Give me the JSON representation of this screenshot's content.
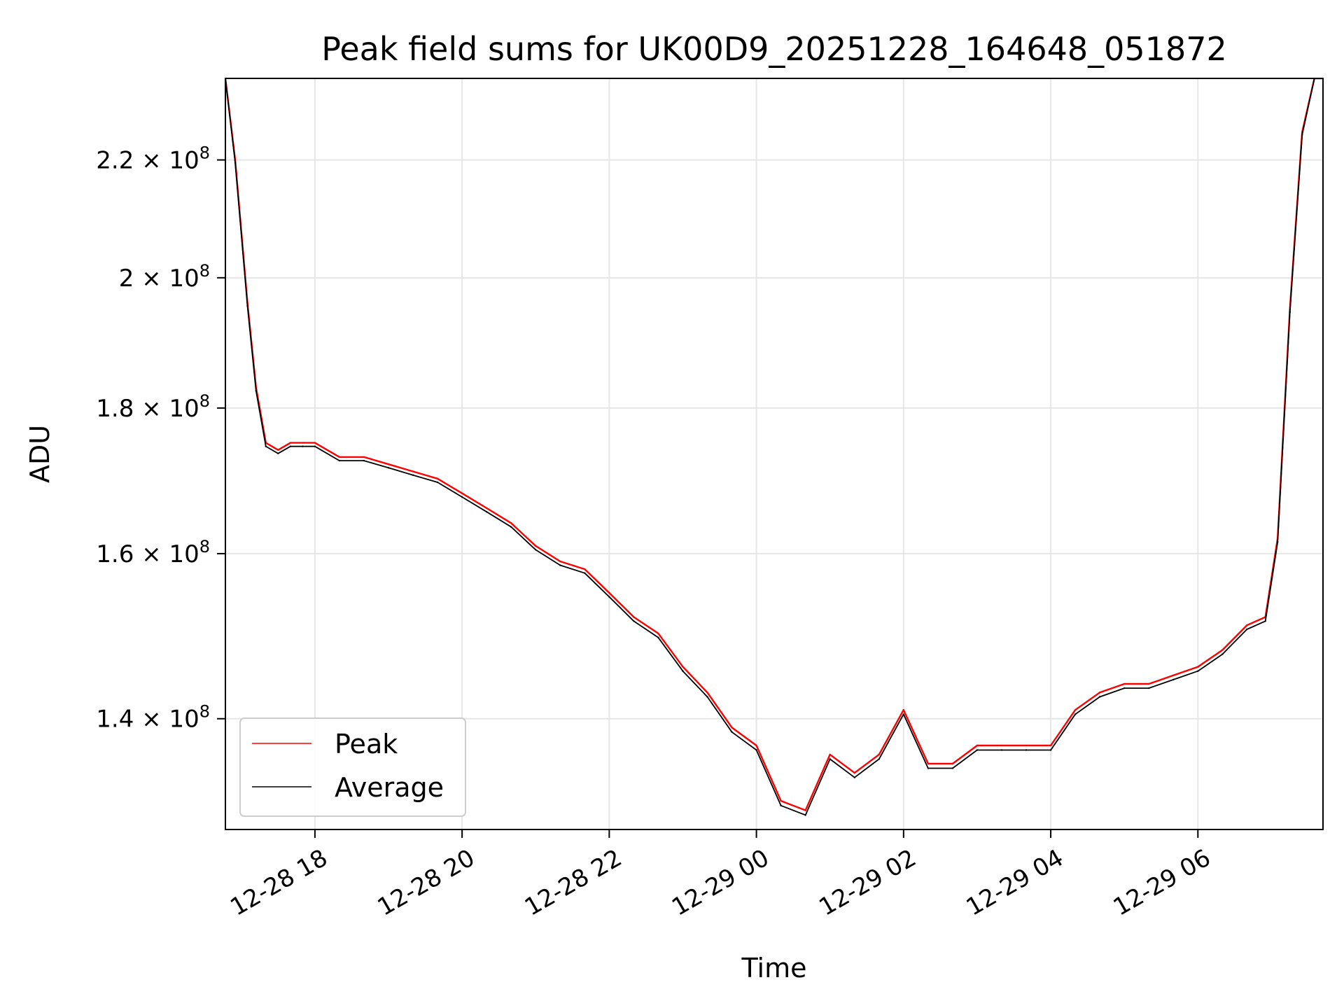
{
  "chart_data": {
    "type": "line",
    "title": "Peak field sums for UK00D9_20251228_164648_051872",
    "xlabel": "Time",
    "ylabel": "ADU",
    "y_scale": "log",
    "xlim": [
      "2025-12-28 16:47",
      "2025-12-29 07:42"
    ],
    "ylim": [
      128000000,
      235000000
    ],
    "grid": true,
    "legend_position": "lower-left",
    "x_ticks": [
      {
        "value": "2025-12-28 18:00",
        "label": "12-28 18"
      },
      {
        "value": "2025-12-28 20:00",
        "label": "12-28 20"
      },
      {
        "value": "2025-12-28 22:00",
        "label": "12-28 22"
      },
      {
        "value": "2025-12-29 00:00",
        "label": "12-29 00"
      },
      {
        "value": "2025-12-29 02:00",
        "label": "12-29 02"
      },
      {
        "value": "2025-12-29 04:00",
        "label": "12-29 04"
      },
      {
        "value": "2025-12-29 06:00",
        "label": "12-29 06"
      }
    ],
    "y_ticks": [
      {
        "value": 140000000,
        "mantissa": "1.4",
        "exponent": "8"
      },
      {
        "value": 160000000,
        "mantissa": "1.6",
        "exponent": "8"
      },
      {
        "value": 180000000,
        "mantissa": "1.8",
        "exponent": "8"
      },
      {
        "value": 200000000,
        "mantissa": "2",
        "exponent": "8"
      },
      {
        "value": 220000000,
        "mantissa": "2.2",
        "exponent": "8"
      }
    ],
    "series": [
      {
        "name": "Peak",
        "color": "#ff0000",
        "x": [
          "2025-12-28 16:47",
          "2025-12-28 16:55",
          "2025-12-28 17:05",
          "2025-12-28 17:12",
          "2025-12-28 17:20",
          "2025-12-28 17:30",
          "2025-12-28 17:40",
          "2025-12-28 17:50",
          "2025-12-28 18:00",
          "2025-12-28 18:20",
          "2025-12-28 18:40",
          "2025-12-28 19:00",
          "2025-12-28 19:20",
          "2025-12-28 19:40",
          "2025-12-28 20:00",
          "2025-12-28 20:20",
          "2025-12-28 20:40",
          "2025-12-28 21:00",
          "2025-12-28 21:20",
          "2025-12-28 21:40",
          "2025-12-28 22:00",
          "2025-12-28 22:20",
          "2025-12-28 22:40",
          "2025-12-28 23:00",
          "2025-12-28 23:20",
          "2025-12-28 23:40",
          "2025-12-29 00:00",
          "2025-12-29 00:20",
          "2025-12-29 00:40",
          "2025-12-29 01:00",
          "2025-12-29 01:20",
          "2025-12-29 01:40",
          "2025-12-29 02:00",
          "2025-12-29 02:20",
          "2025-12-29 02:40",
          "2025-12-29 03:00",
          "2025-12-29 03:20",
          "2025-12-29 03:40",
          "2025-12-29 04:00",
          "2025-12-29 04:20",
          "2025-12-29 04:40",
          "2025-12-29 05:00",
          "2025-12-29 05:20",
          "2025-12-29 05:40",
          "2025-12-29 06:00",
          "2025-12-29 06:20",
          "2025-12-29 06:40",
          "2025-12-29 06:55",
          "2025-12-29 07:05",
          "2025-12-29 07:15",
          "2025-12-29 07:25",
          "2025-12-29 07:35",
          "2025-12-29 07:42"
        ],
        "values": [
          235000000,
          220000000,
          196000000,
          183000000,
          175000000,
          174000000,
          175000000,
          175000000,
          175000000,
          173000000,
          173000000,
          172000000,
          171000000,
          170000000,
          168000000,
          166000000,
          164000000,
          161000000,
          159000000,
          158000000,
          155000000,
          152000000,
          150000000,
          146000000,
          143000000,
          139000000,
          137000000,
          131000000,
          130000000,
          136000000,
          134000000,
          136000000,
          141000000,
          135000000,
          135000000,
          137000000,
          137000000,
          137000000,
          137000000,
          141000000,
          143000000,
          144000000,
          144000000,
          145000000,
          146000000,
          148000000,
          151000000,
          152000000,
          162000000,
          195000000,
          225000000,
          235000000,
          235000000
        ]
      },
      {
        "name": "Average",
        "color": "#000000",
        "x": [
          "2025-12-28 16:47",
          "2025-12-28 16:55",
          "2025-12-28 17:05",
          "2025-12-28 17:12",
          "2025-12-28 17:20",
          "2025-12-28 17:30",
          "2025-12-28 17:40",
          "2025-12-28 17:50",
          "2025-12-28 18:00",
          "2025-12-28 18:20",
          "2025-12-28 18:40",
          "2025-12-28 19:00",
          "2025-12-28 19:20",
          "2025-12-28 19:40",
          "2025-12-28 20:00",
          "2025-12-28 20:20",
          "2025-12-28 20:40",
          "2025-12-28 21:00",
          "2025-12-28 21:20",
          "2025-12-28 21:40",
          "2025-12-28 22:00",
          "2025-12-28 22:20",
          "2025-12-28 22:40",
          "2025-12-28 23:00",
          "2025-12-28 23:20",
          "2025-12-28 23:40",
          "2025-12-29 00:00",
          "2025-12-29 00:20",
          "2025-12-29 00:40",
          "2025-12-29 01:00",
          "2025-12-29 01:20",
          "2025-12-29 01:40",
          "2025-12-29 02:00",
          "2025-12-29 02:20",
          "2025-12-29 02:40",
          "2025-12-29 03:00",
          "2025-12-29 03:20",
          "2025-12-29 03:40",
          "2025-12-29 04:00",
          "2025-12-29 04:20",
          "2025-12-29 04:40",
          "2025-12-29 05:00",
          "2025-12-29 05:20",
          "2025-12-29 05:40",
          "2025-12-29 06:00",
          "2025-12-29 06:20",
          "2025-12-29 06:40",
          "2025-12-29 06:55",
          "2025-12-29 07:05",
          "2025-12-29 07:15",
          "2025-12-29 07:25",
          "2025-12-29 07:35",
          "2025-12-29 07:42"
        ],
        "values": [
          235000000,
          219500000,
          195500000,
          182500000,
          174500000,
          173500000,
          174500000,
          174500000,
          174500000,
          172500000,
          172500000,
          171500000,
          170500000,
          169500000,
          167500000,
          165500000,
          163500000,
          160500000,
          158500000,
          157500000,
          154500000,
          151500000,
          149500000,
          145500000,
          142500000,
          138500000,
          136500000,
          130500000,
          129500000,
          135500000,
          133500000,
          135500000,
          140500000,
          134500000,
          134500000,
          136500000,
          136500000,
          136500000,
          136500000,
          140500000,
          142500000,
          143500000,
          143500000,
          144500000,
          145500000,
          147500000,
          150500000,
          151500000,
          161500000,
          194500000,
          224500000,
          235000000,
          235000000
        ]
      }
    ]
  }
}
